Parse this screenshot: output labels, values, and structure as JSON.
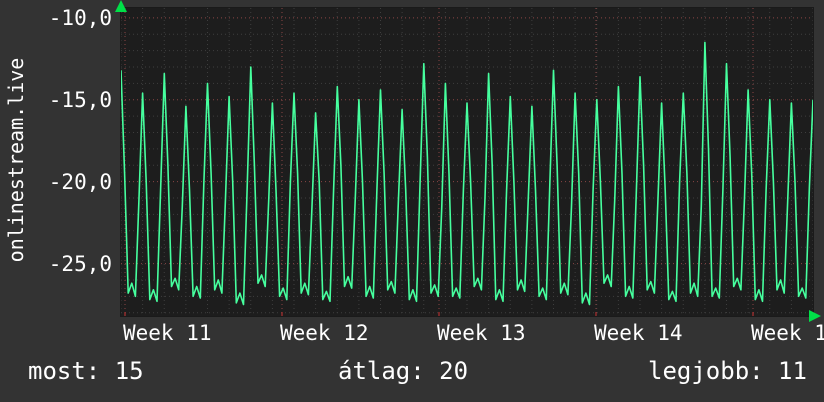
{
  "app": {
    "watermark": "onlinestream.live"
  },
  "colors": {
    "bg": "#333333",
    "plot_bg": "#1d1d1d",
    "line": "#46ff9e",
    "arrow": "#00e048",
    "text": "#ffffff",
    "grid_minor": "#3e3e3e",
    "grid_major": "#8a4545",
    "grid_week": "#8a4545",
    "tick_red": "#cc3333"
  },
  "chart_data": {
    "type": "line",
    "title": "",
    "xlabel": "",
    "ylabel": "",
    "x_ticks": [
      "Week 11",
      "Week 12",
      "Week 13",
      "Week 14",
      "Week 1"
    ],
    "y_ticks": [
      "-10,0",
      "-15,0",
      "-20,0",
      "-25,0"
    ],
    "y_tick_values": [
      -10,
      -15,
      -20,
      -25
    ],
    "ylim": [
      -28.2,
      -9.4
    ],
    "grid": true,
    "legend": "none",
    "summary": {
      "most": 15,
      "atlag": 20,
      "legjobb": 11
    },
    "series": [
      {
        "name": "onlinestream.live",
        "color": "#46ff9e",
        "values": [
          -13.2,
          -19.5,
          -26.8,
          -26.2,
          -27.0,
          -21.0,
          -14.6,
          -20.0,
          -27.2,
          -26.6,
          -27.3,
          -20.5,
          -13.4,
          -19.0,
          -26.4,
          -25.9,
          -26.6,
          -21.5,
          -15.4,
          -20.5,
          -27.0,
          -26.4,
          -27.1,
          -20.0,
          -14.0,
          -19.5,
          -26.6,
          -26.0,
          -26.8,
          -21.0,
          -14.8,
          -20.0,
          -27.4,
          -26.8,
          -27.5,
          -20.5,
          -13.0,
          -19.0,
          -26.2,
          -25.7,
          -26.4,
          -21.0,
          -15.2,
          -20.5,
          -27.0,
          -26.5,
          -27.2,
          -20.0,
          -14.6,
          -19.5,
          -26.8,
          -26.2,
          -26.9,
          -21.5,
          -15.8,
          -20.0,
          -27.2,
          -26.7,
          -27.3,
          -20.5,
          -14.2,
          -19.0,
          -26.4,
          -25.8,
          -26.5,
          -21.0,
          -15.0,
          -20.0,
          -27.0,
          -26.4,
          -27.1,
          -20.5,
          -14.4,
          -19.5,
          -26.6,
          -26.1,
          -26.8,
          -21.0,
          -15.6,
          -20.5,
          -27.2,
          -26.6,
          -27.3,
          -20.0,
          -12.8,
          -18.5,
          -26.8,
          -26.3,
          -27.0,
          -21.5,
          -14.0,
          -19.5,
          -27.0,
          -26.5,
          -27.1,
          -20.5,
          -15.2,
          -20.0,
          -26.4,
          -25.9,
          -26.6,
          -21.0,
          -13.4,
          -19.0,
          -27.2,
          -26.6,
          -27.3,
          -20.5,
          -14.8,
          -20.0,
          -26.6,
          -26.0,
          -26.7,
          -21.0,
          -15.4,
          -20.5,
          -27.0,
          -26.5,
          -27.2,
          -20.0,
          -13.2,
          -19.0,
          -26.8,
          -26.2,
          -26.9,
          -21.5,
          -14.6,
          -19.5,
          -27.4,
          -26.8,
          -27.5,
          -20.5,
          -15.0,
          -20.0,
          -26.2,
          -25.7,
          -26.4,
          -21.0,
          -14.2,
          -19.5,
          -27.0,
          -26.4,
          -27.1,
          -20.5,
          -13.6,
          -19.0,
          -26.6,
          -26.1,
          -26.8,
          -21.0,
          -15.2,
          -20.5,
          -27.2,
          -26.7,
          -27.3,
          -20.0,
          -14.6,
          -19.5,
          -26.8,
          -26.2,
          -27.0,
          -21.5,
          -11.5,
          -18.0,
          -27.0,
          -26.5,
          -27.1,
          -20.5,
          -12.8,
          -18.5,
          -26.4,
          -25.9,
          -26.6,
          -21.0,
          -14.4,
          -19.5,
          -27.2,
          -26.6,
          -27.3,
          -20.5,
          -15.0,
          -20.0,
          -26.6,
          -26.0,
          -26.8,
          -21.0,
          -15.2,
          -20.0,
          -27.0,
          -26.5,
          -27.1,
          -20.3,
          -15.0
        ]
      }
    ]
  },
  "stats": {
    "most": "most: 15",
    "atlag": "átlag: 20",
    "legjobb": "legjobb: 11"
  }
}
